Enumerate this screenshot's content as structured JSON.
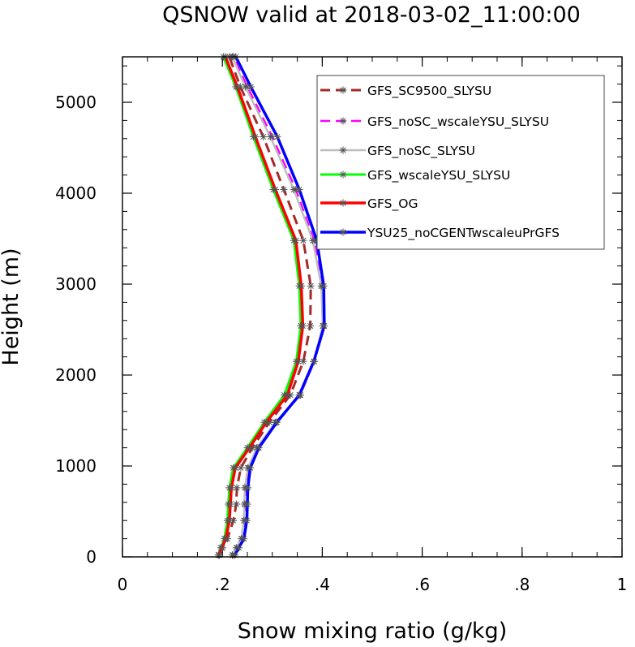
{
  "chart_data": {
    "type": "line",
    "title": "QSNOW valid at 2018-03-02_11:00:00",
    "xlabel": "Snow mixing ratio (g/kg)",
    "ylabel": "Height (m)",
    "xlim": [
      0,
      1
    ],
    "ylim": [
      0,
      5500
    ],
    "xticks": [
      0,
      0.2,
      0.4,
      0.6,
      0.8,
      1
    ],
    "xtick_labels": [
      "0",
      ".2",
      ".4",
      ".6",
      ".8",
      "1"
    ],
    "yticks": [
      0,
      1000,
      2000,
      3000,
      4000,
      5000
    ],
    "ytick_labels": [
      "0",
      "1000",
      "2000",
      "3000",
      "4000",
      "5000"
    ],
    "legend_position": "top-right",
    "heights": [
      20,
      100,
      200,
      400,
      580,
      760,
      980,
      1200,
      1480,
      1780,
      2150,
      2540,
      2980,
      3480,
      4040,
      4620,
      5170,
      5500
    ],
    "series": [
      {
        "name": "GFS_SC9500_SLYSU",
        "color": "#a52a2a",
        "dash": "12,7",
        "width": 3,
        "values": [
          0.194,
          0.2,
          0.21,
          0.222,
          0.228,
          0.229,
          0.237,
          0.26,
          0.294,
          0.336,
          0.362,
          0.376,
          0.377,
          0.362,
          0.323,
          0.282,
          0.236,
          0.214
        ]
      },
      {
        "name": "GFS_noSC_wscaleYSU_SLYSU",
        "color": "#ff00ff",
        "dash": "12,7",
        "width": 2.5,
        "values": [
          0.222,
          0.23,
          0.24,
          0.245,
          0.246,
          0.247,
          0.253,
          0.271,
          0.308,
          0.356,
          0.384,
          0.402,
          0.4,
          0.384,
          0.347,
          0.3,
          0.25,
          0.222
        ]
      },
      {
        "name": "GFS_noSC_SLYSU",
        "color": "#bebebe",
        "dash": "",
        "width": 2.5,
        "values": [
          0.22,
          0.228,
          0.238,
          0.243,
          0.244,
          0.245,
          0.251,
          0.269,
          0.306,
          0.356,
          0.383,
          0.401,
          0.398,
          0.381,
          0.343,
          0.296,
          0.246,
          0.22
        ]
      },
      {
        "name": "GFS_wscaleYSU_SLYSU",
        "color": "#00ff00",
        "dash": "",
        "width": 3,
        "values": [
          0.192,
          0.197,
          0.204,
          0.21,
          0.212,
          0.214,
          0.222,
          0.25,
          0.284,
          0.324,
          0.348,
          0.357,
          0.354,
          0.343,
          0.302,
          0.262,
          0.227,
          0.202
        ]
      },
      {
        "name": "GFS_OG",
        "color": "#ff0000",
        "dash": "",
        "width": 3.5,
        "values": [
          0.193,
          0.199,
          0.207,
          0.214,
          0.216,
          0.218,
          0.226,
          0.254,
          0.288,
          0.33,
          0.352,
          0.361,
          0.358,
          0.347,
          0.306,
          0.266,
          0.23,
          0.206
        ]
      },
      {
        "name": "YSU25_noCGENTwscaleuPrGFS",
        "color": "#0000ff",
        "dash": "",
        "width": 3.5,
        "values": [
          0.225,
          0.233,
          0.243,
          0.249,
          0.25,
          0.251,
          0.256,
          0.273,
          0.309,
          0.354,
          0.383,
          0.404,
          0.403,
          0.389,
          0.354,
          0.31,
          0.257,
          0.227
        ]
      }
    ]
  }
}
